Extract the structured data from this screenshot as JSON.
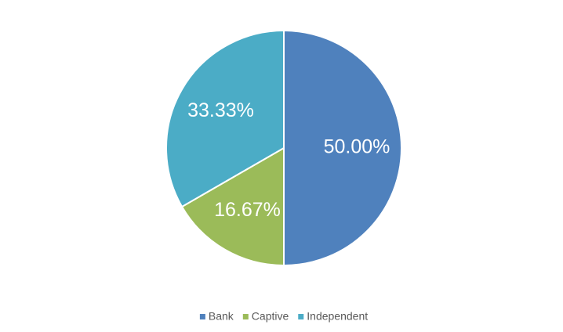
{
  "chart_data": {
    "type": "pie",
    "categories": [
      "Bank",
      "Captive",
      "Independent"
    ],
    "values": [
      50,
      16.67,
      33.33
    ],
    "value_labels": [
      "50.00%",
      "16.67%",
      "33.33%"
    ],
    "colors": [
      "#4f81bd",
      "#9bbb59",
      "#4bacc6"
    ],
    "legend": "bottom"
  }
}
